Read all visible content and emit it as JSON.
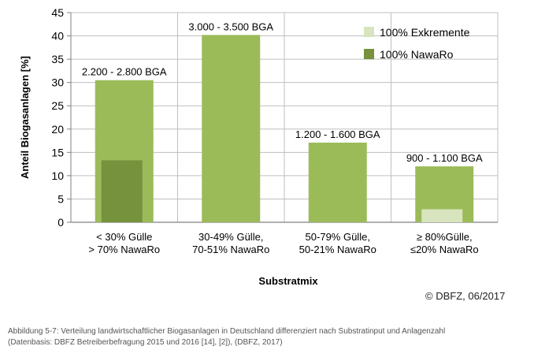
{
  "chart_data": {
    "type": "bar",
    "categories": [
      [
        "< 30% Gülle",
        "> 70% NawaRo"
      ],
      [
        "30-49% Gülle,",
        "70-51% NawaRo"
      ],
      [
        "50-79% Gülle,",
        "50-21% NawaRo"
      ],
      [
        "≥ 80%Gülle,",
        "≤20% NawaRo"
      ]
    ],
    "series": [
      {
        "name": "",
        "values": [
          30.5,
          40.2,
          17.1,
          12.0
        ],
        "color": "#9bbb59"
      }
    ],
    "overlays": [
      {
        "name": "100% NawaRo",
        "values": [
          13.3,
          null,
          null,
          null
        ],
        "color": "#76923c"
      },
      {
        "name": "100% Exkremente",
        "values": [
          null,
          null,
          null,
          2.8
        ],
        "color": "#d7e4bd"
      }
    ],
    "bar_labels": [
      "2.200 - 2.800 BGA",
      "3.000 - 3.500 BGA",
      "1.200 - 1.600 BGA",
      "900 - 1.100 BGA"
    ],
    "xlabel": "Substratmix",
    "ylabel": "Anteil Biogasanlagen [%]",
    "ylim": [
      0,
      45
    ],
    "yticks": [
      0,
      5,
      10,
      15,
      20,
      25,
      30,
      35,
      40,
      45
    ],
    "grid": true,
    "legend": {
      "placement": "top-right",
      "entries": [
        {
          "label": "100% Exkremente",
          "color": "#d7e4bd"
        },
        {
          "label": "100% NawaRo",
          "color": "#76923c"
        }
      ]
    }
  },
  "copyright": "© DBFZ, 06/2017",
  "caption": {
    "line1": "Abbildung 5-7: Verteilung landwirtschaftlicher Biogasanlagen in Deutschland differenziert nach Substratinput und Anlagenzahl",
    "line2": "(Datenbasis: DBFZ Betreiberbefragung 2015 und 2016 [14], [2]), (DBFZ, 2017)"
  }
}
